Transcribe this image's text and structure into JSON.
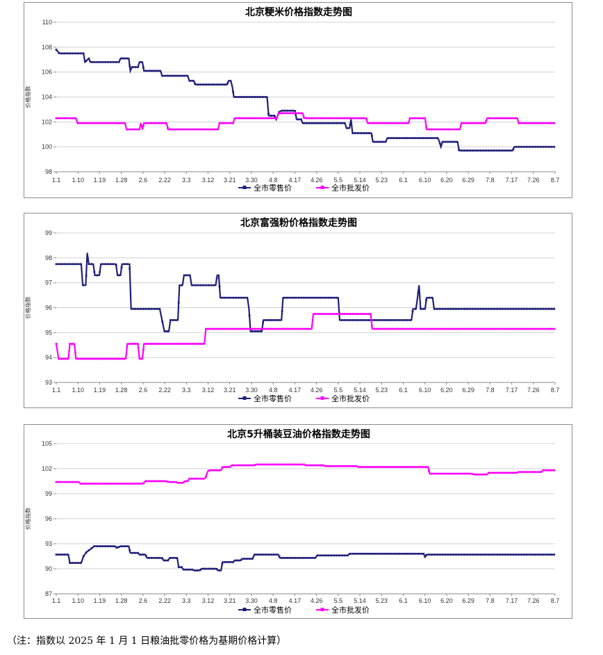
{
  "chart_data": [
    {
      "type": "line",
      "title": "北京粳米价格指数走势图",
      "ylabel": "价格指数",
      "ylim": [
        98,
        110
      ],
      "yticks": [
        98,
        100,
        102,
        104,
        106,
        108,
        110
      ],
      "x_ticks": [
        "1.1",
        "1.10",
        "1.19",
        "1.28",
        "2.6",
        "2.22",
        "3.3",
        "3.12",
        "3.21",
        "3.30",
        "4.8",
        "4.17",
        "4.26",
        "5.5",
        "5.14",
        "5.23",
        "6.1",
        "6.10",
        "6.20",
        "6.29",
        "7.8",
        "7.17",
        "7.26",
        "8.7"
      ],
      "legend_position": "bottom",
      "grid": true,
      "series": [
        {
          "name": "全市零售价",
          "color": "#1f1f7a",
          "points": [
            [
              0,
              107.8
            ],
            [
              0.4,
              107.5
            ],
            [
              3.6,
              107.5
            ],
            [
              3.8,
              106.8
            ],
            [
              4.3,
              107.1
            ],
            [
              4.5,
              106.8
            ],
            [
              8.3,
              106.8
            ],
            [
              8.5,
              107.1
            ],
            [
              9.6,
              107.1
            ],
            [
              9.8,
              106.1
            ],
            [
              10,
              106.4
            ],
            [
              10.8,
              106.4
            ],
            [
              11,
              106.8
            ],
            [
              11.4,
              106.8
            ],
            [
              11.6,
              106.1
            ],
            [
              13.8,
              106.1
            ],
            [
              14,
              105.7
            ],
            [
              17.4,
              105.7
            ],
            [
              17.6,
              105.3
            ],
            [
              18.2,
              105.3
            ],
            [
              18.4,
              105.0
            ],
            [
              22.6,
              105.0
            ],
            [
              22.8,
              105.3
            ],
            [
              23.1,
              105.3
            ],
            [
              23.3,
              104.8
            ],
            [
              23.5,
              104.0
            ],
            [
              27.9,
              104.0
            ],
            [
              28.1,
              102.5
            ],
            [
              28.9,
              102.5
            ],
            [
              29.1,
              102.2
            ],
            [
              29.5,
              102.8
            ],
            [
              29.8,
              102.9
            ],
            [
              31.6,
              102.9
            ],
            [
              31.8,
              102.2
            ],
            [
              32.4,
              102.2
            ],
            [
              32.6,
              101.9
            ],
            [
              38.2,
              101.9
            ],
            [
              38.4,
              101.5
            ],
            [
              38.8,
              101.5
            ],
            [
              39.0,
              102.2
            ],
            [
              39.2,
              101.1
            ],
            [
              41.7,
              101.1
            ],
            [
              41.9,
              100.4
            ],
            [
              43.6,
              100.4
            ],
            [
              43.8,
              100.7
            ],
            [
              50.5,
              100.7
            ],
            [
              50.7,
              100.4
            ],
            [
              50.9,
              100.0
            ],
            [
              51.1,
              100.4
            ],
            [
              53.1,
              100.4
            ],
            [
              53.3,
              99.7
            ],
            [
              60.4,
              99.7
            ],
            [
              60.6,
              100.0
            ],
            [
              66,
              100.0
            ]
          ]
        },
        {
          "name": "全市批发价",
          "color": "#ff00ff",
          "points": [
            [
              0,
              102.3
            ],
            [
              2.6,
              102.3
            ],
            [
              2.8,
              101.9
            ],
            [
              9.1,
              101.9
            ],
            [
              9.3,
              101.4
            ],
            [
              11.0,
              101.4
            ],
            [
              11.2,
              101.9
            ],
            [
              11.4,
              101.4
            ],
            [
              11.6,
              101.9
            ],
            [
              14.6,
              101.9
            ],
            [
              14.8,
              101.4
            ],
            [
              21.4,
              101.4
            ],
            [
              21.6,
              101.9
            ],
            [
              23.4,
              101.9
            ],
            [
              23.6,
              102.3
            ],
            [
              29.2,
              102.3
            ],
            [
              29.4,
              102.7
            ],
            [
              32.6,
              102.7
            ],
            [
              32.8,
              102.3
            ],
            [
              41.0,
              102.3
            ],
            [
              41.2,
              101.9
            ],
            [
              46.6,
              101.9
            ],
            [
              46.8,
              102.3
            ],
            [
              48.8,
              102.3
            ],
            [
              49.0,
              101.4
            ],
            [
              53.4,
              101.4
            ],
            [
              53.6,
              101.9
            ],
            [
              56.8,
              101.9
            ],
            [
              57.0,
              102.3
            ],
            [
              61.0,
              102.3
            ],
            [
              61.2,
              101.9
            ],
            [
              66,
              101.9
            ]
          ]
        }
      ]
    },
    {
      "type": "line",
      "title": "北京富强粉价格指数走势图",
      "ylabel": "价格指数",
      "ylim": [
        93,
        99
      ],
      "yticks": [
        93,
        94,
        95,
        96,
        97,
        98,
        99
      ],
      "x_ticks": [
        "1.1",
        "1.10",
        "1.19",
        "1.28",
        "2.6",
        "2.22",
        "3.3",
        "3.12",
        "3.21",
        "3.30",
        "4.8",
        "4.17",
        "4.26",
        "5.5",
        "5.14",
        "5.23",
        "6.1",
        "6.10",
        "6.20",
        "6.29",
        "7.8",
        "7.17",
        "7.26",
        "8.7"
      ],
      "legend_position": "bottom",
      "grid": true,
      "series": [
        {
          "name": "全市零售价",
          "color": "#1f1f7a",
          "points": [
            [
              0,
              97.75
            ],
            [
              3.3,
              97.75
            ],
            [
              3.5,
              96.9
            ],
            [
              3.9,
              96.9
            ],
            [
              4.1,
              98.2
            ],
            [
              4.3,
              97.75
            ],
            [
              4.9,
              97.75
            ],
            [
              5.1,
              97.3
            ],
            [
              5.7,
              97.3
            ],
            [
              5.9,
              97.75
            ],
            [
              7.9,
              97.75
            ],
            [
              8.1,
              97.3
            ],
            [
              8.5,
              97.3
            ],
            [
              8.7,
              97.75
            ],
            [
              9.7,
              97.75
            ],
            [
              9.9,
              95.95
            ],
            [
              13.7,
              95.95
            ],
            [
              14.0,
              95.5
            ],
            [
              14.3,
              95.05
            ],
            [
              14.9,
              95.05
            ],
            [
              15.1,
              95.5
            ],
            [
              16.1,
              95.5
            ],
            [
              16.3,
              96.9
            ],
            [
              16.7,
              96.9
            ],
            [
              16.9,
              97.3
            ],
            [
              17.7,
              97.3
            ],
            [
              17.9,
              96.9
            ],
            [
              21.1,
              96.9
            ],
            [
              21.3,
              97.3
            ],
            [
              21.5,
              97.3
            ],
            [
              21.7,
              96.4
            ],
            [
              25.3,
              96.4
            ],
            [
              25.5,
              95.95
            ],
            [
              25.7,
              95.05
            ],
            [
              27.2,
              95.05
            ],
            [
              27.4,
              95.5
            ],
            [
              29.8,
              95.5
            ],
            [
              30.0,
              96.4
            ],
            [
              37.3,
              96.4
            ],
            [
              37.5,
              95.5
            ],
            [
              47.0,
              95.5
            ],
            [
              47.2,
              95.95
            ],
            [
              47.6,
              95.95
            ],
            [
              47.8,
              96.4
            ],
            [
              48.0,
              96.9
            ],
            [
              48.2,
              95.95
            ],
            [
              48.8,
              95.95
            ],
            [
              49.0,
              96.4
            ],
            [
              49.8,
              96.4
            ],
            [
              50.0,
              95.95
            ],
            [
              66,
              95.95
            ]
          ]
        },
        {
          "name": "全市批发价",
          "color": "#ff00ff",
          "points": [
            [
              0,
              94.55
            ],
            [
              0.3,
              93.95
            ],
            [
              1.6,
              93.95
            ],
            [
              1.8,
              94.55
            ],
            [
              2.4,
              94.55
            ],
            [
              2.6,
              93.95
            ],
            [
              9.2,
              93.95
            ],
            [
              9.4,
              94.55
            ],
            [
              10.8,
              94.55
            ],
            [
              11.0,
              93.95
            ],
            [
              11.4,
              93.95
            ],
            [
              11.6,
              94.55
            ],
            [
              19.6,
              94.55
            ],
            [
              19.8,
              95.15
            ],
            [
              33.8,
              95.15
            ],
            [
              34.0,
              95.75
            ],
            [
              41.6,
              95.75
            ],
            [
              41.8,
              95.15
            ],
            [
              66,
              95.15
            ]
          ]
        }
      ]
    },
    {
      "type": "line",
      "title": "北京5升桶装豆油价格指数走势图",
      "ylabel": "价格指数",
      "ylim": [
        87,
        105
      ],
      "yticks": [
        87,
        90,
        93,
        96,
        99,
        102,
        105
      ],
      "x_ticks": [
        "1.1",
        "1.10",
        "1.19",
        "1.28",
        "2.6",
        "2.22",
        "3.3",
        "3.12",
        "3.21",
        "3.30",
        "4.8",
        "4.17",
        "4.26",
        "5.5",
        "5.14",
        "5.23",
        "6.1",
        "6.10",
        "6.20",
        "6.29",
        "7.8",
        "7.17",
        "7.26",
        "8.7"
      ],
      "legend_position": "bottom",
      "grid": true,
      "series": [
        {
          "name": "全市零售价",
          "color": "#1f1f7a",
          "points": [
            [
              0,
              91.7
            ],
            [
              1.6,
              91.7
            ],
            [
              1.8,
              90.7
            ],
            [
              3.3,
              90.7
            ],
            [
              3.6,
              91.5
            ],
            [
              4.0,
              92.0
            ],
            [
              4.6,
              92.4
            ],
            [
              5.0,
              92.7
            ],
            [
              7.8,
              92.7
            ],
            [
              8.0,
              92.5
            ],
            [
              8.5,
              92.7
            ],
            [
              9.6,
              92.7
            ],
            [
              9.8,
              91.9
            ],
            [
              10.8,
              91.9
            ],
            [
              11.0,
              91.7
            ],
            [
              11.8,
              91.7
            ],
            [
              12.0,
              91.3
            ],
            [
              14.0,
              91.3
            ],
            [
              14.2,
              91.0
            ],
            [
              14.8,
              91.0
            ],
            [
              15.0,
              91.3
            ],
            [
              16.0,
              91.3
            ],
            [
              16.2,
              90.2
            ],
            [
              16.6,
              90.2
            ],
            [
              16.8,
              89.9
            ],
            [
              18.0,
              89.9
            ],
            [
              18.2,
              89.8
            ],
            [
              19.0,
              89.8
            ],
            [
              19.2,
              90.0
            ],
            [
              21.2,
              90.0
            ],
            [
              21.4,
              89.8
            ],
            [
              21.8,
              89.8
            ],
            [
              22.0,
              90.8
            ],
            [
              23.4,
              90.8
            ],
            [
              23.6,
              91.0
            ],
            [
              24.4,
              91.0
            ],
            [
              24.6,
              91.2
            ],
            [
              26.0,
              91.2
            ],
            [
              26.2,
              91.7
            ],
            [
              29.4,
              91.7
            ],
            [
              29.6,
              91.3
            ],
            [
              34.3,
              91.3
            ],
            [
              34.5,
              91.6
            ],
            [
              38.6,
              91.6
            ],
            [
              38.8,
              91.8
            ],
            [
              48.6,
              91.8
            ],
            [
              48.8,
              91.4
            ],
            [
              49.0,
              91.7
            ],
            [
              66,
              91.7
            ]
          ]
        },
        {
          "name": "全市批发价",
          "color": "#ff00ff",
          "points": [
            [
              0,
              100.4
            ],
            [
              3.0,
              100.4
            ],
            [
              3.2,
              100.2
            ],
            [
              11.4,
              100.2
            ],
            [
              11.6,
              100.3
            ],
            [
              11.8,
              100.5
            ],
            [
              14.6,
              100.5
            ],
            [
              14.8,
              100.4
            ],
            [
              15.8,
              100.4
            ],
            [
              16.0,
              100.3
            ],
            [
              16.8,
              100.3
            ],
            [
              17.0,
              100.5
            ],
            [
              17.4,
              100.5
            ],
            [
              17.6,
              100.8
            ],
            [
              19.6,
              100.8
            ],
            [
              19.8,
              101.0
            ],
            [
              20.0,
              101.6
            ],
            [
              20.2,
              101.8
            ],
            [
              21.8,
              101.8
            ],
            [
              22.0,
              102.2
            ],
            [
              23.0,
              102.2
            ],
            [
              23.2,
              102.4
            ],
            [
              26.2,
              102.4
            ],
            [
              26.4,
              102.5
            ],
            [
              32.8,
              102.5
            ],
            [
              33.0,
              102.4
            ],
            [
              35.4,
              102.4
            ],
            [
              35.6,
              102.3
            ],
            [
              39.8,
              102.3
            ],
            [
              40.0,
              102.2
            ],
            [
              49.2,
              102.2
            ],
            [
              49.4,
              101.4
            ],
            [
              55.0,
              101.4
            ],
            [
              55.2,
              101.3
            ],
            [
              57.0,
              101.3
            ],
            [
              57.2,
              101.5
            ],
            [
              61.0,
              101.5
            ],
            [
              61.2,
              101.6
            ],
            [
              64.2,
              101.6
            ],
            [
              64.4,
              101.8
            ],
            [
              66,
              101.8
            ]
          ]
        }
      ]
    }
  ],
  "note": "（注：指数以 2025 年 1 月 1 日粮油批零价格为基期价格计算）"
}
